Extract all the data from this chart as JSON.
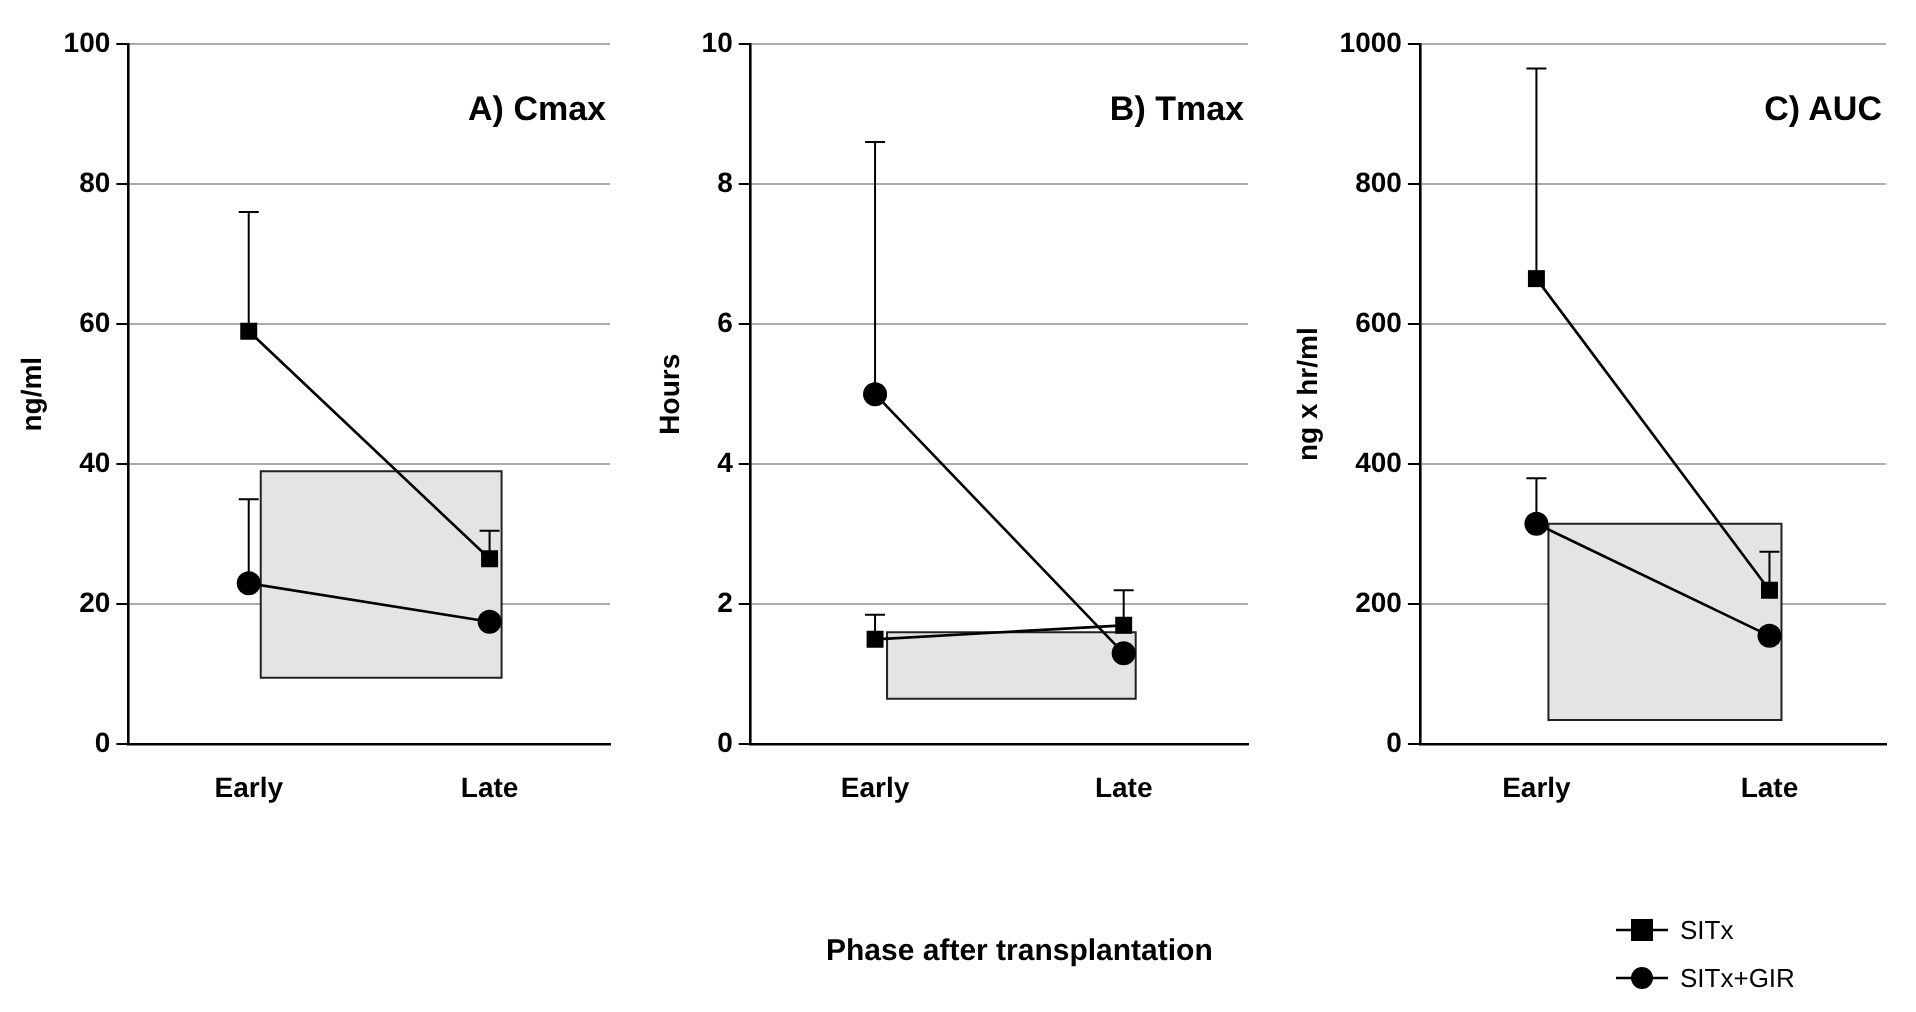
{
  "chart_data": [
    {
      "type": "line",
      "title": "A) Cmax",
      "ylabel": "ng/ml",
      "categories": [
        "Early",
        "Late"
      ],
      "ylim": [
        0,
        100
      ],
      "yticks": [
        0,
        20,
        40,
        60,
        80,
        100
      ],
      "grid": "y",
      "legend": false,
      "bands": [
        {
          "axis": "y",
          "from": 9.5,
          "to": 39,
          "color": "#e4e4e4"
        }
      ],
      "series": [
        {
          "color": "#000000",
          "marker": "square",
          "values": [
            59,
            26.5
          ],
          "errors": [
            [
              59,
              76
            ],
            [
              26.5,
              30.5
            ]
          ]
        },
        {
          "color": "#000000",
          "marker": "circle",
          "values": [
            23,
            17.5
          ],
          "errors": [
            [
              23,
              35
            ],
            null
          ]
        }
      ]
    },
    {
      "type": "line",
      "title": "B) Tmax",
      "ylabel": "Hours",
      "xlabel": "Phase after transplantation",
      "categories": [
        "Early",
        "Late"
      ],
      "ylim": [
        0,
        10
      ],
      "yticks": [
        0,
        2,
        4,
        6,
        8,
        10
      ],
      "grid": "y",
      "legend": false,
      "bands": [
        {
          "axis": "y",
          "from": 0.65,
          "to": 1.6,
          "color": "#e4e4e4"
        }
      ],
      "series": [
        {
          "color": "#000000",
          "marker": "square",
          "values": [
            1.5,
            1.7
          ],
          "errors": [
            [
              1.5,
              1.85
            ],
            [
              1.7,
              2.2
            ]
          ]
        },
        {
          "color": "#000000",
          "marker": "circle",
          "values": [
            5,
            1.3
          ],
          "errors": [
            [
              5,
              8.6
            ],
            null
          ]
        }
      ]
    },
    {
      "type": "line",
      "title": "C) AUC",
      "ylabel": "ng x hr/ml",
      "categories": [
        "Early",
        "Late"
      ],
      "ylim": [
        0,
        1000
      ],
      "yticks": [
        0,
        200,
        400,
        600,
        800,
        1000
      ],
      "grid": "y",
      "legend": "bottom right",
      "bands": [
        {
          "axis": "y",
          "from": 35,
          "to": 315,
          "color": "#e4e4e4"
        }
      ],
      "series": [
        {
          "name": "SITx",
          "color": "#000000",
          "marker": "square",
          "values": [
            665,
            220
          ],
          "errors": [
            [
              665,
              965
            ],
            [
              220,
              275
            ]
          ]
        },
        {
          "name": "SITx+GIR",
          "color": "#000000",
          "marker": "circle",
          "values": [
            315,
            155
          ],
          "errors": [
            [
              315,
              380
            ],
            null
          ]
        }
      ]
    }
  ]
}
